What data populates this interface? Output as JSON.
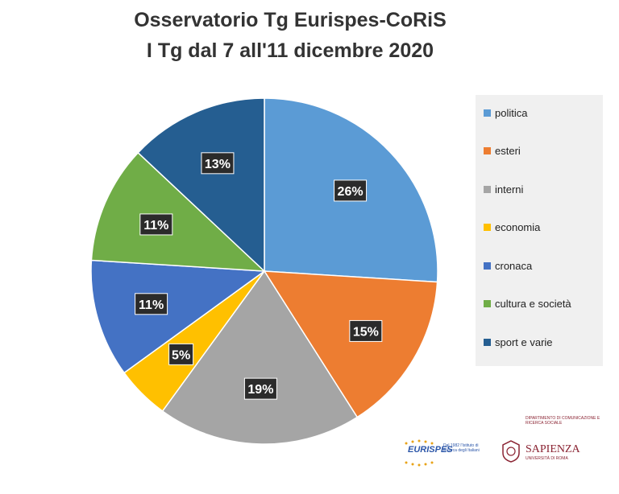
{
  "title_line1": "Osservatorio Tg Eurispes-CoRiS",
  "title_line2": "I Tg dal 7 all'11 dicembre 2020",
  "chart_data": {
    "type": "pie",
    "title": "Osservatorio Tg Eurispes-CoRiS I Tg dal 7 all'11 dicembre 2020",
    "categories": [
      "politica",
      "esteri",
      "interni",
      "economia",
      "cronaca",
      "cultura e società",
      "sport e varie"
    ],
    "values": [
      26,
      15,
      19,
      5,
      11,
      11,
      13
    ],
    "labels": [
      "26%",
      "15%",
      "19%",
      "5%",
      "11%",
      "11%",
      "13%"
    ],
    "colors": [
      "#5b9bd5",
      "#ed7d31",
      "#a5a5a5",
      "#ffc000",
      "#4472c4",
      "#70ad47",
      "#255e91"
    ],
    "legend_position": "right"
  },
  "logos": {
    "eurispes_name": "EURISPES",
    "eurispes_tagline": "Dal 1982 l'Istituto di Ricerca degli Italiani",
    "dept_name": "DIPARTIMENTO DI COMUNICAZIONE E RICERCA SOCIALE",
    "sapienza_name": "SAPIENZA",
    "sapienza_sub": "UNIVERSITÀ DI ROMA"
  }
}
